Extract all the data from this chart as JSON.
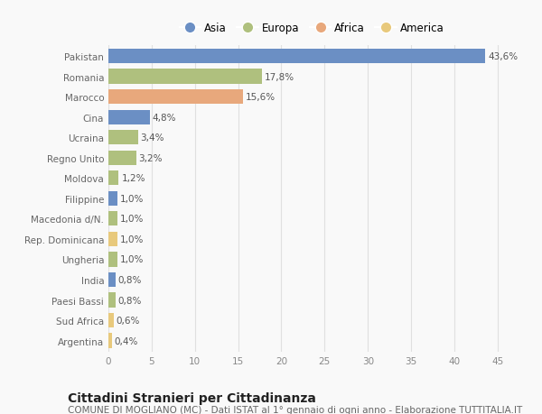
{
  "categories": [
    "Pakistan",
    "Romania",
    "Marocco",
    "Cina",
    "Ucraina",
    "Regno Unito",
    "Moldova",
    "Filippine",
    "Macedonia d/N.",
    "Rep. Dominicana",
    "Ungheria",
    "India",
    "Paesi Bassi",
    "Sud Africa",
    "Argentina"
  ],
  "values": [
    43.6,
    17.8,
    15.6,
    4.8,
    3.4,
    3.2,
    1.2,
    1.0,
    1.0,
    1.0,
    1.0,
    0.8,
    0.8,
    0.6,
    0.4
  ],
  "labels": [
    "43,6%",
    "17,8%",
    "15,6%",
    "4,8%",
    "3,4%",
    "3,2%",
    "1,2%",
    "1,0%",
    "1,0%",
    "1,0%",
    "1,0%",
    "0,8%",
    "0,8%",
    "0,6%",
    "0,4%"
  ],
  "colors": [
    "#6b8fc4",
    "#afc07e",
    "#e8a87c",
    "#6b8fc4",
    "#afc07e",
    "#afc07e",
    "#afc07e",
    "#6b8fc4",
    "#afc07e",
    "#e8c97c",
    "#afc07e",
    "#6b8fc4",
    "#afc07e",
    "#e8c97c",
    "#e8c97c"
  ],
  "legend_labels": [
    "Asia",
    "Europa",
    "Africa",
    "America"
  ],
  "legend_colors": [
    "#6b8fc4",
    "#afc07e",
    "#e8a87c",
    "#e8c97c"
  ],
  "title": "Cittadini Stranieri per Cittadinanza",
  "subtitle": "COMUNE DI MOGLIANO (MC) - Dati ISTAT al 1° gennaio di ogni anno - Elaborazione TUTTITALIA.IT",
  "xlim": [
    0,
    47
  ],
  "xticks": [
    0,
    5,
    10,
    15,
    20,
    25,
    30,
    35,
    40,
    45
  ],
  "background_color": "#f9f9f9",
  "grid_color": "#e0e0e0",
  "bar_height": 0.72,
  "title_fontsize": 10,
  "subtitle_fontsize": 7.5,
  "label_fontsize": 7.5,
  "tick_fontsize": 7.5,
  "legend_fontsize": 8.5
}
